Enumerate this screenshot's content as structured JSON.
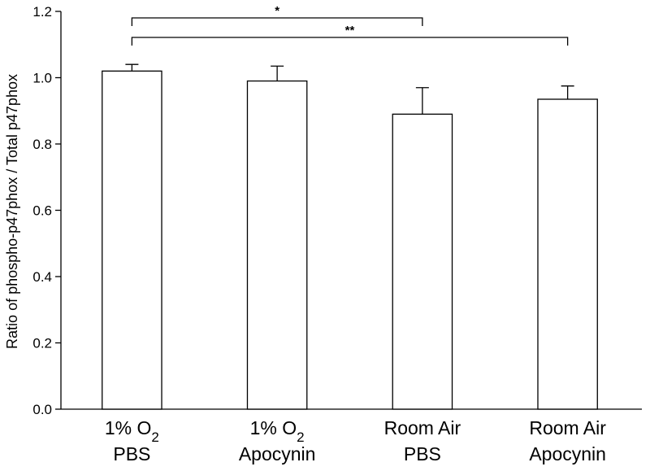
{
  "chart_data": {
    "type": "bar",
    "ylabel": "Ratio of phospho-p47phox / Total p47phox",
    "ylim": [
      0,
      1.2
    ],
    "yticks": [
      "0.0",
      "0.2",
      "0.4",
      "0.6",
      "0.8",
      "1.0",
      "1.2"
    ],
    "grid": false,
    "categories": [
      {
        "line1": "1% O",
        "sub": "2",
        "line2": "PBS"
      },
      {
        "line1": "1% O",
        "sub": "2",
        "line2": "Apocynin"
      },
      {
        "line1": "Room Air",
        "sub": "",
        "line2": "PBS"
      },
      {
        "line1": "Room Air",
        "sub": "",
        "line2": "Apocynin"
      }
    ],
    "values": [
      1.02,
      0.99,
      0.89,
      0.935
    ],
    "error_upper": [
      0.02,
      0.045,
      0.08,
      0.04
    ],
    "bar_fill": "#ffffff",
    "bar_stroke": "#000000",
    "significance": [
      {
        "from": 0,
        "to": 2,
        "label": "*"
      },
      {
        "from": 0,
        "to": 3,
        "label": "**"
      }
    ]
  }
}
